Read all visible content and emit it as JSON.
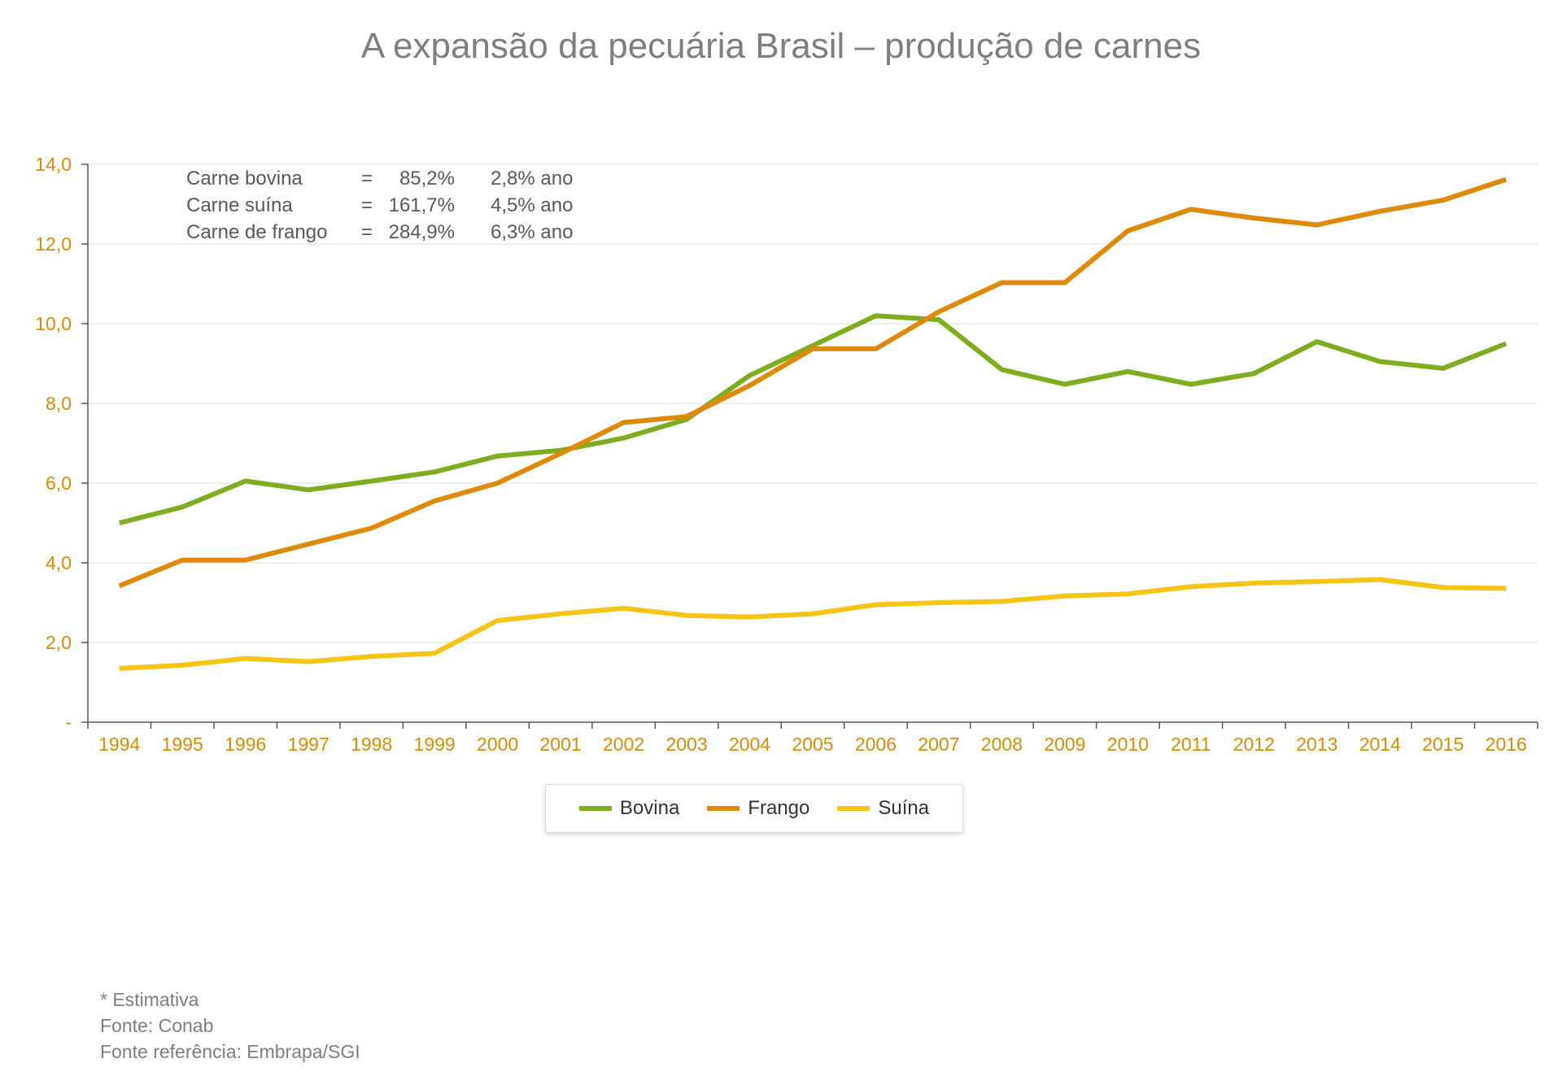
{
  "page": {
    "notes": [
      "* Estimativa",
      "Fonte: Conab",
      "Fonte referência: Embrapa/SGI"
    ]
  },
  "stats": [
    {
      "label": "Carne bovina",
      "eq": "=",
      "total": "85,2%",
      "rate": "2,8% ano"
    },
    {
      "label": "Carne suína",
      "eq": "=",
      "total": "161,7%",
      "rate": "4,5% ano"
    },
    {
      "label": "Carne de frango",
      "eq": "=",
      "total": "284,9%",
      "rate": "6,3% ano"
    }
  ],
  "chart_data": {
    "type": "line",
    "title": "A expansão da pecuária Brasil – produção de carnes",
    "xlabel": "",
    "ylabel": "",
    "x": [
      "1994",
      "1995",
      "1996",
      "1997",
      "1998",
      "1999",
      "2000",
      "2001",
      "2002",
      "2003",
      "2004",
      "2005",
      "2006",
      "2007",
      "2008",
      "2009",
      "2010",
      "2011",
      "2012",
      "2013",
      "2014",
      "2015",
      "2016"
    ],
    "ylim": [
      0,
      14
    ],
    "yticks": [
      0,
      2,
      4,
      6,
      8,
      10,
      12,
      14
    ],
    "ytick_labels": [
      "-",
      "2,0",
      "4,0",
      "6,0",
      "8,0",
      "10,0",
      "12,0",
      "14,0"
    ],
    "grid": true,
    "legend_position": "bottom-center",
    "axis_color": "#e18a00",
    "series": [
      {
        "name": "Bovina",
        "color": "#7fad1f",
        "values": [
          5.0,
          5.4,
          6.05,
          5.83,
          6.05,
          6.28,
          6.68,
          6.82,
          7.13,
          7.6,
          8.7,
          9.45,
          10.2,
          10.1,
          8.85,
          8.48,
          8.8,
          8.48,
          8.75,
          9.55,
          9.05,
          8.88,
          9.5
        ]
      },
      {
        "name": "Frango",
        "color": "#e08a0c",
        "values": [
          3.42,
          4.07,
          4.07,
          4.47,
          4.87,
          5.55,
          6.0,
          6.74,
          7.52,
          7.67,
          8.45,
          9.37,
          9.37,
          10.3,
          11.03,
          11.03,
          12.33,
          12.87,
          12.65,
          12.48,
          12.82,
          13.1,
          13.62
        ]
      },
      {
        "name": "Suína",
        "color": "#f6c417",
        "values": [
          1.35,
          1.43,
          1.6,
          1.52,
          1.65,
          1.73,
          2.55,
          2.72,
          2.86,
          2.68,
          2.64,
          2.72,
          2.95,
          3.0,
          3.03,
          3.17,
          3.22,
          3.4,
          3.49,
          3.53,
          3.58,
          3.38,
          3.36
        ]
      }
    ]
  }
}
